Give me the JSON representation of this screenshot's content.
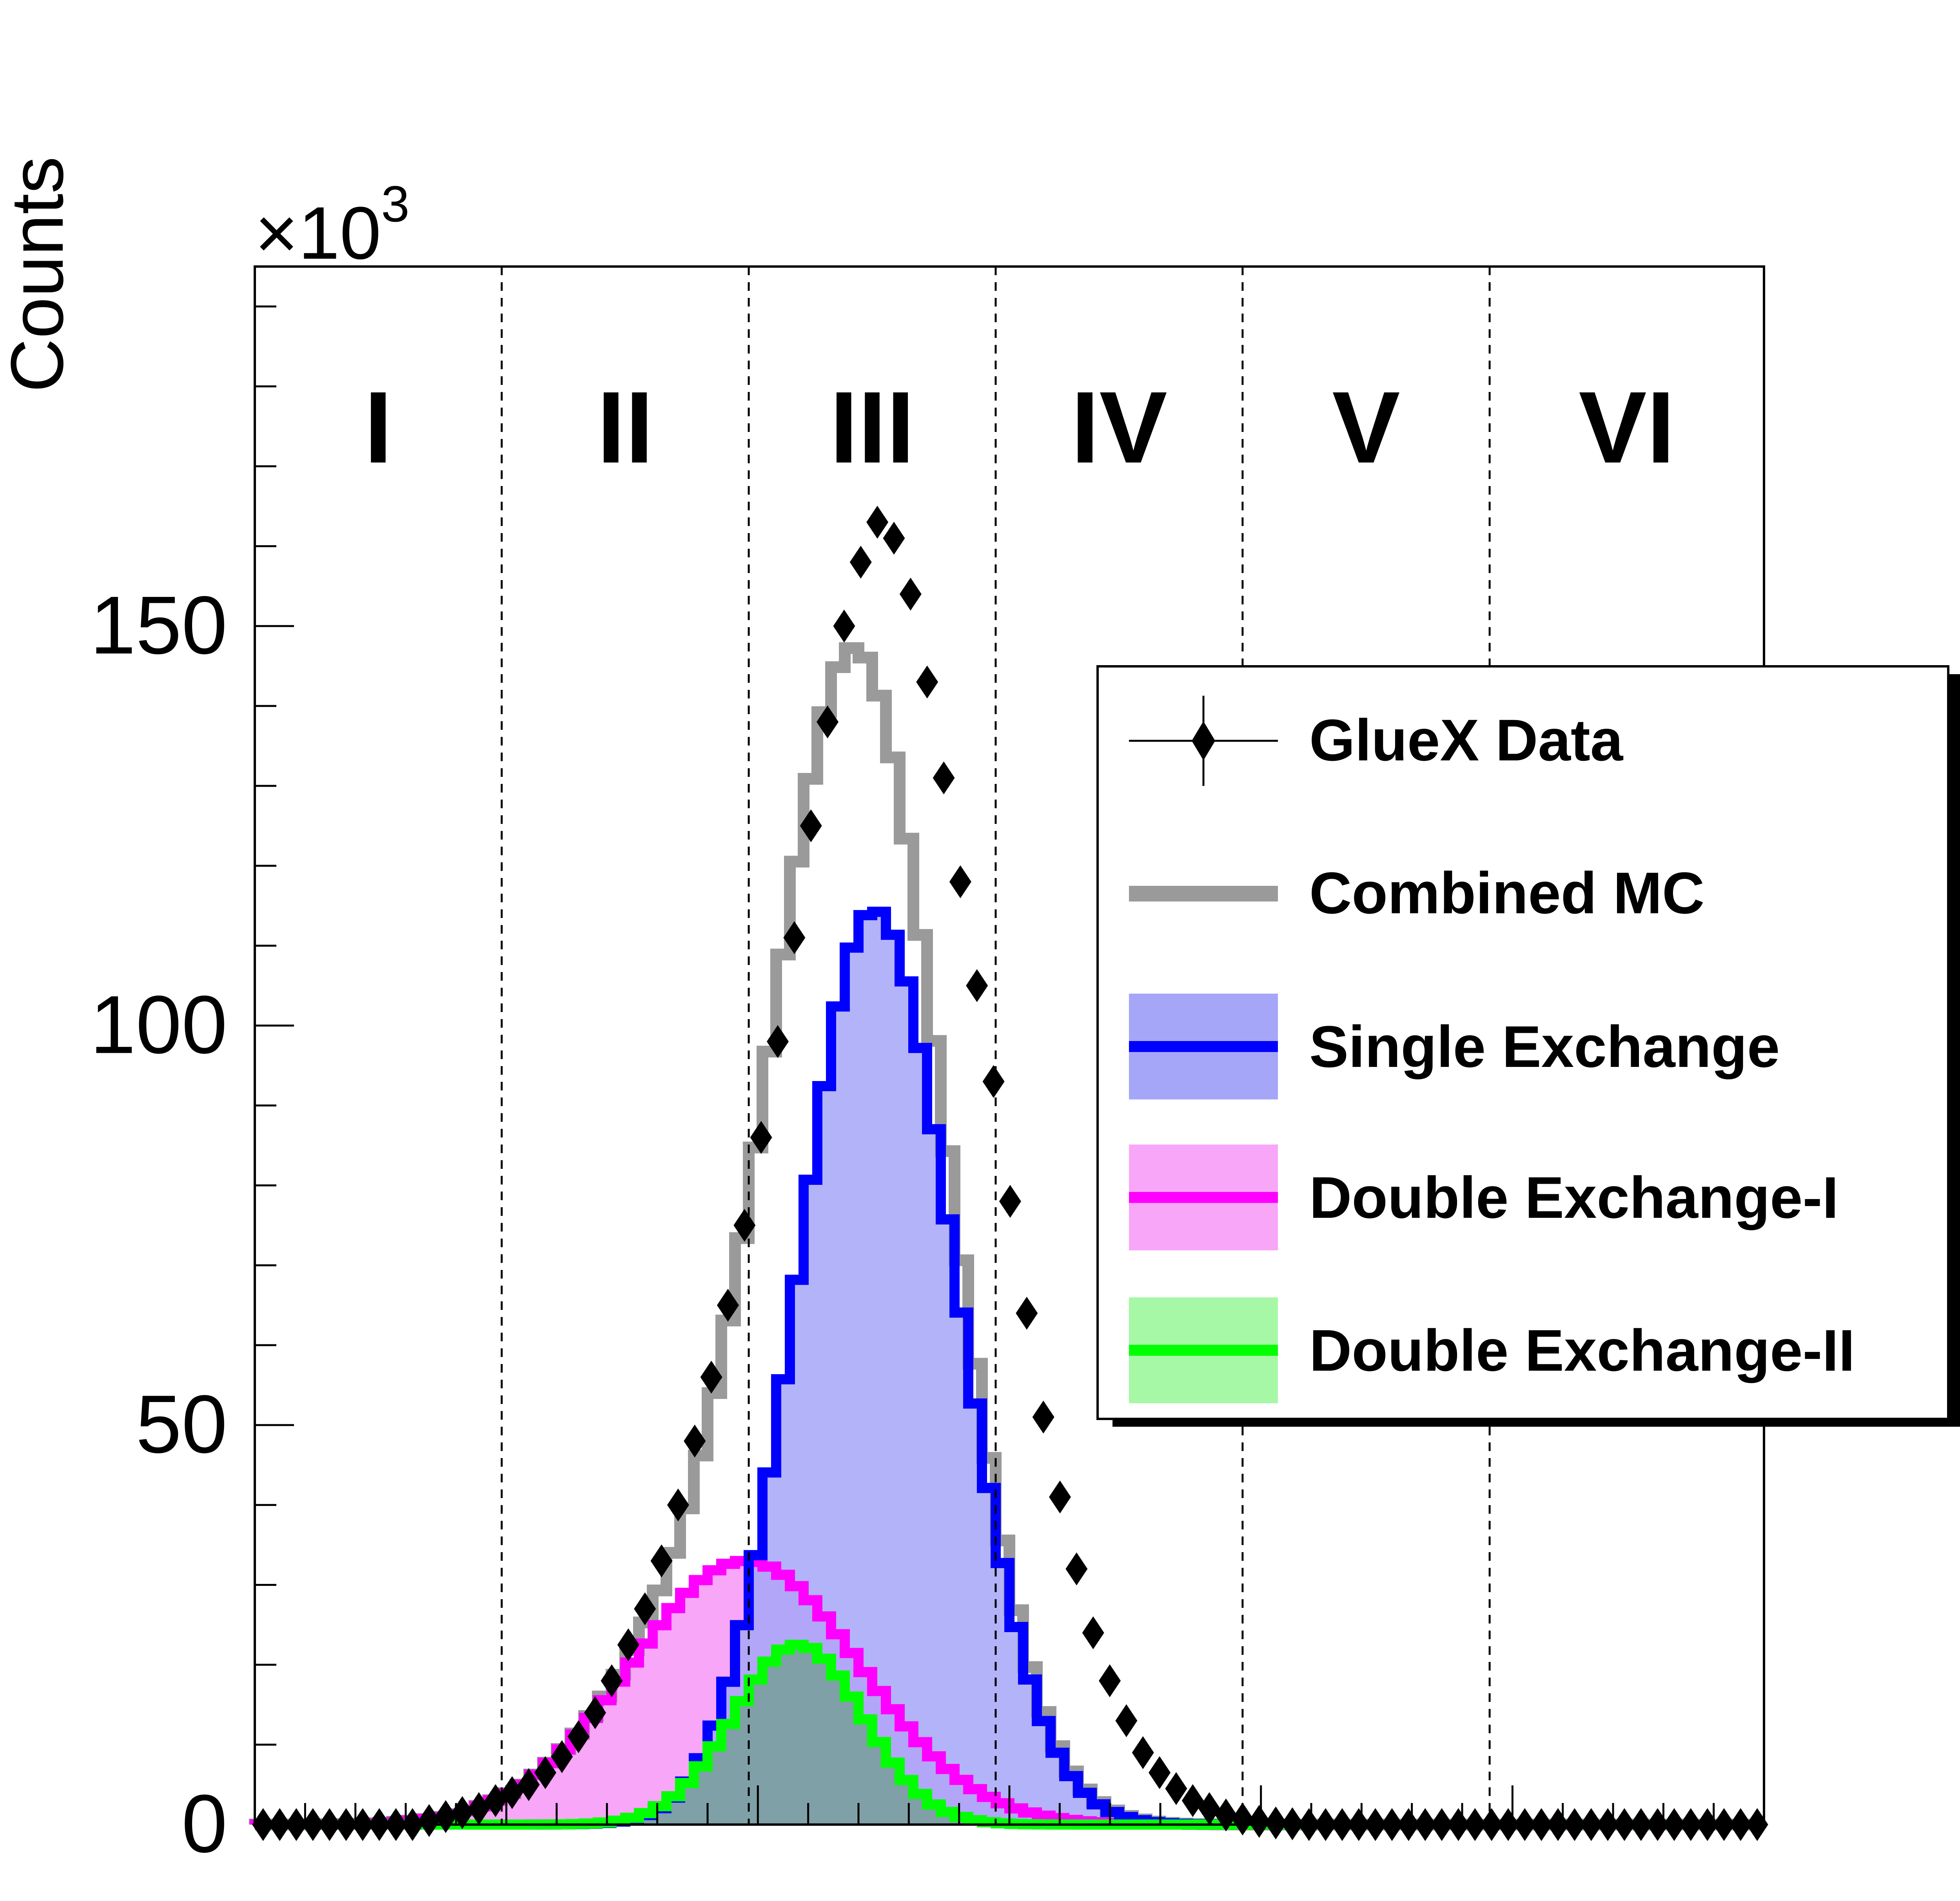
{
  "chart_data": {
    "type": "histogram",
    "ylabel": "Counts",
    "y_multiplier_base": "×10",
    "y_multiplier_exp": "3",
    "ylim": [
      0,
      195
    ],
    "xlim": [
      0,
      1
    ],
    "yticks": [
      0,
      50,
      100,
      150
    ],
    "regions": [
      "I",
      "II",
      "III",
      "IV",
      "V",
      "VI"
    ],
    "region_edges": [
      0.1636,
      0.3273,
      0.4909,
      0.6545,
      0.8182
    ],
    "legend": {
      "data": "GlueX Data",
      "combined": "Combined MC",
      "single": "Single Exchange",
      "double1": "Double Exchange-I",
      "double2": "Double Exchange-II"
    },
    "components": {
      "single": {
        "peak": 114.5,
        "mu": 0.41,
        "sigma_left": 0.05,
        "sigma_right": 0.054
      },
      "double1": {
        "peak": 33.0,
        "mu": 0.325,
        "sigma_left": 0.076,
        "sigma_right": 0.076
      },
      "double2": {
        "peak": 22.5,
        "mu": 0.36,
        "sigma_left": 0.043,
        "sigma_right": 0.043
      }
    },
    "data_points": {
      "x": [
        0.0,
        0.011,
        0.022,
        0.033,
        0.044,
        0.055,
        0.066,
        0.077,
        0.088,
        0.099,
        0.11,
        0.121,
        0.132,
        0.143,
        0.154,
        0.165,
        0.176,
        0.187,
        0.198,
        0.209,
        0.22,
        0.231,
        0.242,
        0.253,
        0.264,
        0.275,
        0.286,
        0.297,
        0.308,
        0.319,
        0.33,
        0.341,
        0.352,
        0.363,
        0.374,
        0.385,
        0.396,
        0.407,
        0.418,
        0.429,
        0.44,
        0.451,
        0.462,
        0.473,
        0.484,
        0.495,
        0.506,
        0.517,
        0.528,
        0.539,
        0.55,
        0.561,
        0.572,
        0.583,
        0.594,
        0.605,
        0.616,
        0.627,
        0.638,
        0.649,
        0.66,
        0.671,
        0.682,
        0.693,
        0.704,
        0.715,
        0.726,
        0.737,
        0.748,
        0.759,
        0.77,
        0.781,
        0.792,
        0.803,
        0.814,
        0.825,
        0.836,
        0.847,
        0.858,
        0.869,
        0.88,
        0.891,
        0.902,
        0.913,
        0.924,
        0.935,
        0.946,
        0.957,
        0.968,
        0.979,
        0.99
      ],
      "y": [
        0.0,
        0.0,
        0.0,
        0.0,
        0.0,
        0.0,
        0.0,
        0.0,
        0.0,
        0.0,
        0.5,
        1.0,
        1.5,
        2.0,
        3.0,
        4.0,
        5.0,
        6.5,
        8.5,
        11.0,
        14.0,
        18.0,
        22.5,
        27.0,
        33.0,
        40.0,
        48.0,
        56.0,
        65.0,
        75.0,
        86.0,
        98.0,
        111.0,
        125.0,
        138.0,
        150.0,
        158.0,
        163.0,
        161.0,
        154.0,
        143.0,
        131.0,
        118.0,
        105.0,
        93.0,
        78.0,
        64.0,
        51.0,
        41.0,
        32.0,
        24.0,
        18.0,
        13.0,
        9.0,
        6.5,
        4.5,
        3.0,
        2.0,
        1.2,
        0.7,
        0.4,
        0.2,
        0.1,
        0.0,
        0.0,
        0.0,
        0.0,
        0.0,
        0.0,
        0.0,
        0.0,
        0.0,
        0.0,
        0.0,
        0.0,
        0.0,
        0.0,
        0.0,
        0.0,
        0.0,
        0.0,
        0.0,
        0.0,
        0.0,
        0.0,
        0.0,
        0.0,
        0.0,
        0.0,
        0.0,
        0.0
      ]
    },
    "colors": {
      "data": "#000000",
      "combined": "#9a9a9a",
      "single_line": "#0000ff",
      "single_fill": "#a6a6f8",
      "double1_line": "#ff00ff",
      "double1_fill": "#f8a6f8",
      "double2_line": "#00ff00",
      "double2_fill": "#a6f8a6",
      "overlap_fill": "#7fa0a6"
    }
  }
}
